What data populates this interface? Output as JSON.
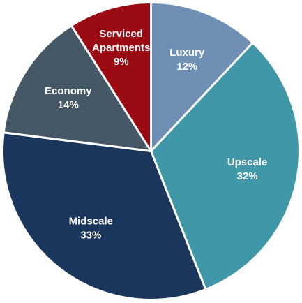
{
  "chart_data": {
    "type": "pie",
    "title": "",
    "start_angle_deg": 0,
    "direction": "clockwise",
    "legend": "none",
    "slices": [
      {
        "label": "Luxury",
        "value": 12,
        "value_label": "12%",
        "color": "#6f8fb5",
        "text_color": "#ffffff"
      },
      {
        "label": "Upscale",
        "value": 32,
        "value_label": "32%",
        "color": "#3f97a8",
        "text_color": "#ffffff"
      },
      {
        "label": "Midscale",
        "value": 33,
        "value_label": "33%",
        "color": "#1b365d",
        "text_color": "#ffffff"
      },
      {
        "label": "Economy",
        "value": 14,
        "value_label": "14%",
        "color": "#465866",
        "text_color": "#ffffff"
      },
      {
        "label": "Serviced\nApartments",
        "value": 9,
        "value_label": "9%",
        "color": "#9b0b13",
        "text_color": "#ffffff"
      }
    ]
  }
}
